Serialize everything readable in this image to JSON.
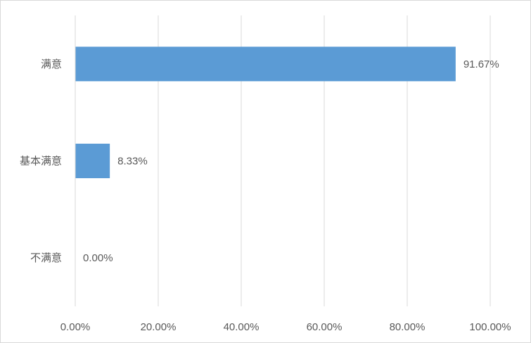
{
  "chart_data": {
    "type": "bar",
    "orientation": "horizontal",
    "title": "",
    "xlabel": "",
    "ylabel": "",
    "categories": [
      "满意",
      "基本满意",
      "不满意"
    ],
    "values": [
      91.67,
      8.33,
      0.0
    ],
    "data_labels": [
      "91.67%",
      "8.33%",
      "0.00%"
    ],
    "xlim": [
      0,
      100
    ],
    "x_ticks": [
      0,
      20,
      40,
      60,
      80,
      100
    ],
    "x_tick_labels": [
      "0.00%",
      "20.00%",
      "40.00%",
      "60.00%",
      "80.00%",
      "100.00%"
    ],
    "grid": "vertical",
    "legend": "none",
    "colors": {
      "bar": "#5b9bd5",
      "grid": "#d9d9d9",
      "text": "#595959"
    }
  }
}
